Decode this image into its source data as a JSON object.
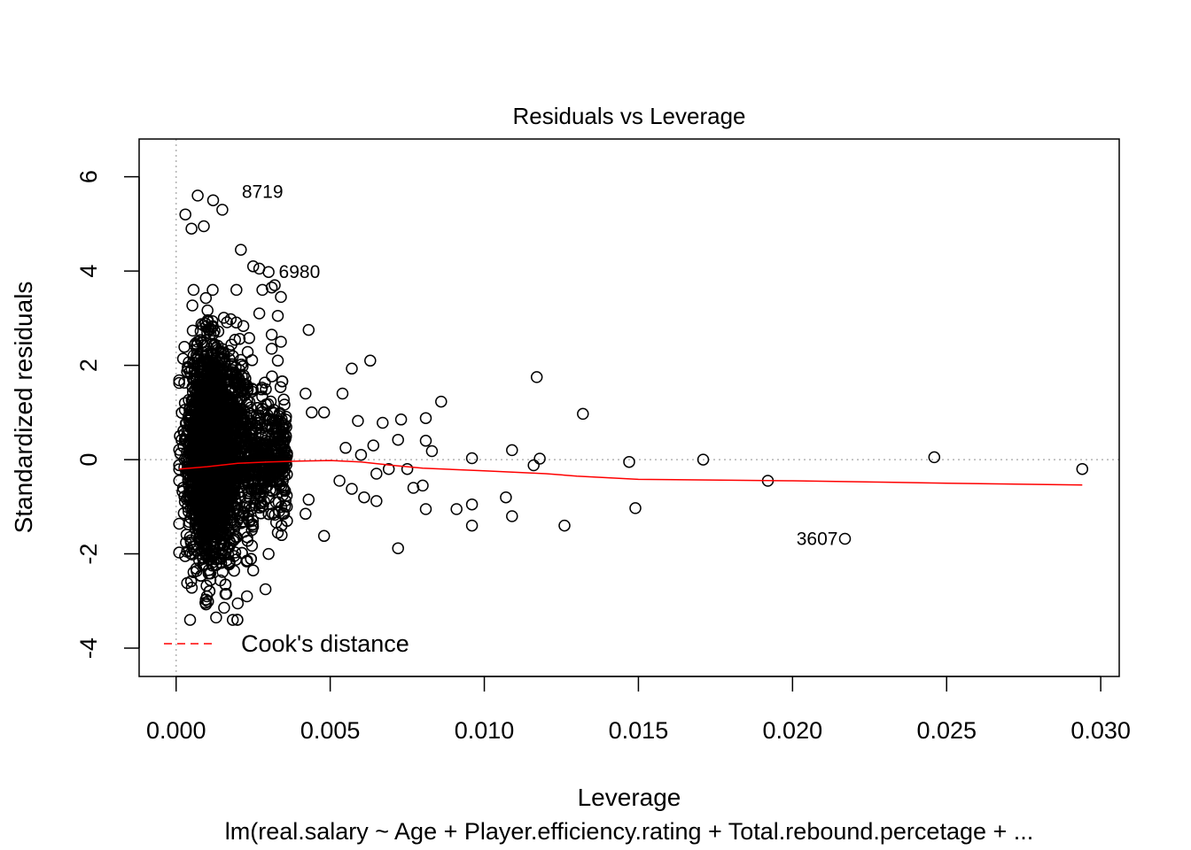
{
  "chart_data": {
    "type": "scatter",
    "title": "Residuals vs Leverage",
    "xlabel": "Leverage",
    "ylabel": "Standardized residuals",
    "subtitle": "lm(real.salary ~ Age + Player.efficiency.rating + Total.rebound.percetage + ...",
    "xlim": [
      -0.0012,
      0.0306
    ],
    "ylim": [
      -4.6,
      6.8
    ],
    "x_ticks": [
      0.0,
      0.005,
      0.01,
      0.015,
      0.02,
      0.025,
      0.03
    ],
    "x_tick_labels": [
      "0.000",
      "0.005",
      "0.010",
      "0.015",
      "0.020",
      "0.025",
      "0.030"
    ],
    "y_ticks": [
      -4,
      -2,
      0,
      2,
      4,
      6
    ],
    "y_tick_labels": [
      "-4",
      "-2",
      "0",
      "2",
      "4",
      "6"
    ],
    "reference_lines": {
      "horizontal": 0,
      "vertical": 0,
      "style": "dotted",
      "color": "#b3b3b3"
    },
    "point_style": {
      "shape": "open-circle",
      "color": "#000000"
    },
    "dense_cluster": {
      "x_range": [
        0.0001,
        0.0045
      ],
      "x_mode": 0.0011,
      "y_mean": 0.0,
      "y_sd": 1.0,
      "y_range": [
        -3.4,
        5.6
      ]
    },
    "points": [
      {
        "x": 0.0007,
        "y": 5.6
      },
      {
        "x": 0.0012,
        "y": 5.5
      },
      {
        "x": 0.0015,
        "y": 5.3
      },
      {
        "x": 0.0003,
        "y": 5.2
      },
      {
        "x": 0.0009,
        "y": 4.95
      },
      {
        "x": 0.0005,
        "y": 4.9
      },
      {
        "x": 0.0021,
        "y": 4.45
      },
      {
        "x": 0.0025,
        "y": 4.1
      },
      {
        "x": 0.0027,
        "y": 4.05
      },
      {
        "x": 0.003,
        "y": 3.98
      },
      {
        "x": 0.0032,
        "y": 3.7
      },
      {
        "x": 0.0031,
        "y": 3.65
      },
      {
        "x": 0.0034,
        "y": 3.45
      },
      {
        "x": 0.0028,
        "y": 3.6
      },
      {
        "x": 0.0033,
        "y": 3.05
      },
      {
        "x": 0.0027,
        "y": 3.1
      },
      {
        "x": 0.0031,
        "y": 2.65
      },
      {
        "x": 0.0034,
        "y": 2.5
      },
      {
        "x": 0.0031,
        "y": 2.35
      },
      {
        "x": 0.0033,
        "y": 2.1
      },
      {
        "x": 0.0043,
        "y": 2.75
      },
      {
        "x": 0.0057,
        "y": 1.93
      },
      {
        "x": 0.0063,
        "y": 2.1
      },
      {
        "x": 0.0054,
        "y": 1.4
      },
      {
        "x": 0.0042,
        "y": 1.4
      },
      {
        "x": 0.0044,
        "y": 1.0
      },
      {
        "x": 0.0048,
        "y": 1.0
      },
      {
        "x": 0.0059,
        "y": 0.82
      },
      {
        "x": 0.0073,
        "y": 0.85
      },
      {
        "x": 0.0067,
        "y": 0.78
      },
      {
        "x": 0.0081,
        "y": 0.88
      },
      {
        "x": 0.0086,
        "y": 1.23
      },
      {
        "x": 0.0117,
        "y": 1.75
      },
      {
        "x": 0.0132,
        "y": 0.97
      },
      {
        "x": 0.0072,
        "y": 0.42
      },
      {
        "x": 0.0081,
        "y": 0.4
      },
      {
        "x": 0.0083,
        "y": 0.18
      },
      {
        "x": 0.0096,
        "y": 0.03
      },
      {
        "x": 0.0109,
        "y": 0.2
      },
      {
        "x": 0.0116,
        "y": -0.12
      },
      {
        "x": 0.0118,
        "y": 0.02
      },
      {
        "x": 0.0147,
        "y": -0.05
      },
      {
        "x": 0.0171,
        "y": 0.0
      },
      {
        "x": 0.0246,
        "y": 0.05
      },
      {
        "x": 0.0294,
        "y": -0.2
      },
      {
        "x": 0.0192,
        "y": -0.45
      },
      {
        "x": 0.0149,
        "y": -1.03
      },
      {
        "x": 0.0126,
        "y": -1.4
      },
      {
        "x": 0.0107,
        "y": -0.8
      },
      {
        "x": 0.0109,
        "y": -1.2
      },
      {
        "x": 0.0096,
        "y": -0.95
      },
      {
        "x": 0.0096,
        "y": -1.4
      },
      {
        "x": 0.0091,
        "y": -1.05
      },
      {
        "x": 0.0081,
        "y": -1.05
      },
      {
        "x": 0.008,
        "y": -0.55
      },
      {
        "x": 0.0077,
        "y": -0.6
      },
      {
        "x": 0.0072,
        "y": -1.88
      },
      {
        "x": 0.0065,
        "y": -0.88
      },
      {
        "x": 0.0061,
        "y": -0.8
      },
      {
        "x": 0.0057,
        "y": -0.62
      },
      {
        "x": 0.0053,
        "y": -0.45
      },
      {
        "x": 0.0048,
        "y": -1.62
      },
      {
        "x": 0.0043,
        "y": -0.85
      },
      {
        "x": 0.0042,
        "y": -1.15
      },
      {
        "x": 0.0065,
        "y": -0.3
      },
      {
        "x": 0.0069,
        "y": -0.2
      },
      {
        "x": 0.0075,
        "y": -0.2
      },
      {
        "x": 0.0055,
        "y": 0.25
      },
      {
        "x": 0.006,
        "y": 0.1
      },
      {
        "x": 0.0064,
        "y": 0.3
      },
      {
        "x": 0.0036,
        "y": -1.3
      },
      {
        "x": 0.0033,
        "y": -1.55
      },
      {
        "x": 0.003,
        "y": -2.0
      },
      {
        "x": 0.0025,
        "y": -2.35
      },
      {
        "x": 0.0029,
        "y": -2.75
      },
      {
        "x": 0.0023,
        "y": -2.9
      },
      {
        "x": 0.002,
        "y": -3.05
      },
      {
        "x": 0.0016,
        "y": -2.85
      },
      {
        "x": 0.0013,
        "y": -3.35
      },
      {
        "x": 0.001,
        "y": -2.9
      },
      {
        "x": 0.0217,
        "y": -1.68
      }
    ],
    "smoother": {
      "color": "#ff0000",
      "points": [
        [
          0.0001,
          -0.2
        ],
        [
          0.001,
          -0.15
        ],
        [
          0.002,
          -0.08
        ],
        [
          0.003,
          -0.05
        ],
        [
          0.004,
          -0.03
        ],
        [
          0.005,
          -0.02
        ],
        [
          0.006,
          -0.05
        ],
        [
          0.007,
          -0.12
        ],
        [
          0.008,
          -0.18
        ],
        [
          0.01,
          -0.24
        ],
        [
          0.012,
          -0.3
        ],
        [
          0.013,
          -0.35
        ],
        [
          0.015,
          -0.42
        ],
        [
          0.02,
          -0.45
        ],
        [
          0.025,
          -0.5
        ],
        [
          0.0294,
          -0.54
        ]
      ]
    },
    "labeled_points": [
      {
        "label": "8719",
        "x": 0.0019,
        "y": 5.68,
        "side": "right"
      },
      {
        "label": "6980",
        "x": 0.0031,
        "y": 3.98,
        "side": "right"
      },
      {
        "label": "3607",
        "x": 0.0217,
        "y": -1.68,
        "side": "left"
      }
    ],
    "legend": {
      "entry": "Cook's distance",
      "line_style": "dashed",
      "color": "#ff0000",
      "placement": "bottom-left"
    }
  }
}
